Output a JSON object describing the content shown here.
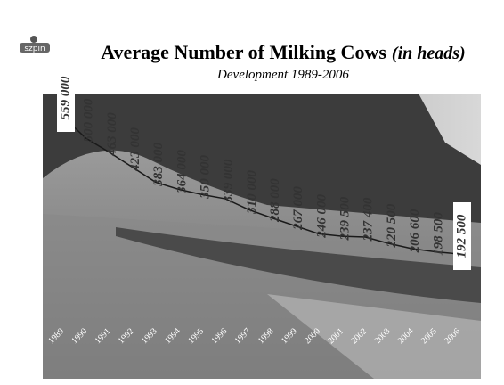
{
  "logo": "szpin",
  "chart_data": {
    "type": "line",
    "title": "Average Number of Milking Cows",
    "title_note": "(in heads)",
    "subtitle": "Development 1989-2006",
    "categories": [
      "1989",
      "1990",
      "1991",
      "1992",
      "1993",
      "1994",
      "1995",
      "1996",
      "1997",
      "1998",
      "1999",
      "2000",
      "2001",
      "2002",
      "2003",
      "2004",
      "2005",
      "2006"
    ],
    "values": [
      559000,
      500000,
      463000,
      423000,
      383000,
      364000,
      350000,
      339000,
      310000,
      288000,
      267000,
      246000,
      239500,
      237400,
      220500,
      206600,
      198500,
      192500
    ],
    "value_labels": [
      "559 000",
      "500 000",
      "463 000",
      "423 000",
      "383 000",
      "364 000",
      "350 000",
      "339 000",
      "310 000",
      "288 000",
      "267 000",
      "246 000",
      "239 500",
      "237 400",
      "220 500",
      "206 600",
      "198 500",
      "192 500"
    ],
    "color": "#1a1a1a"
  }
}
